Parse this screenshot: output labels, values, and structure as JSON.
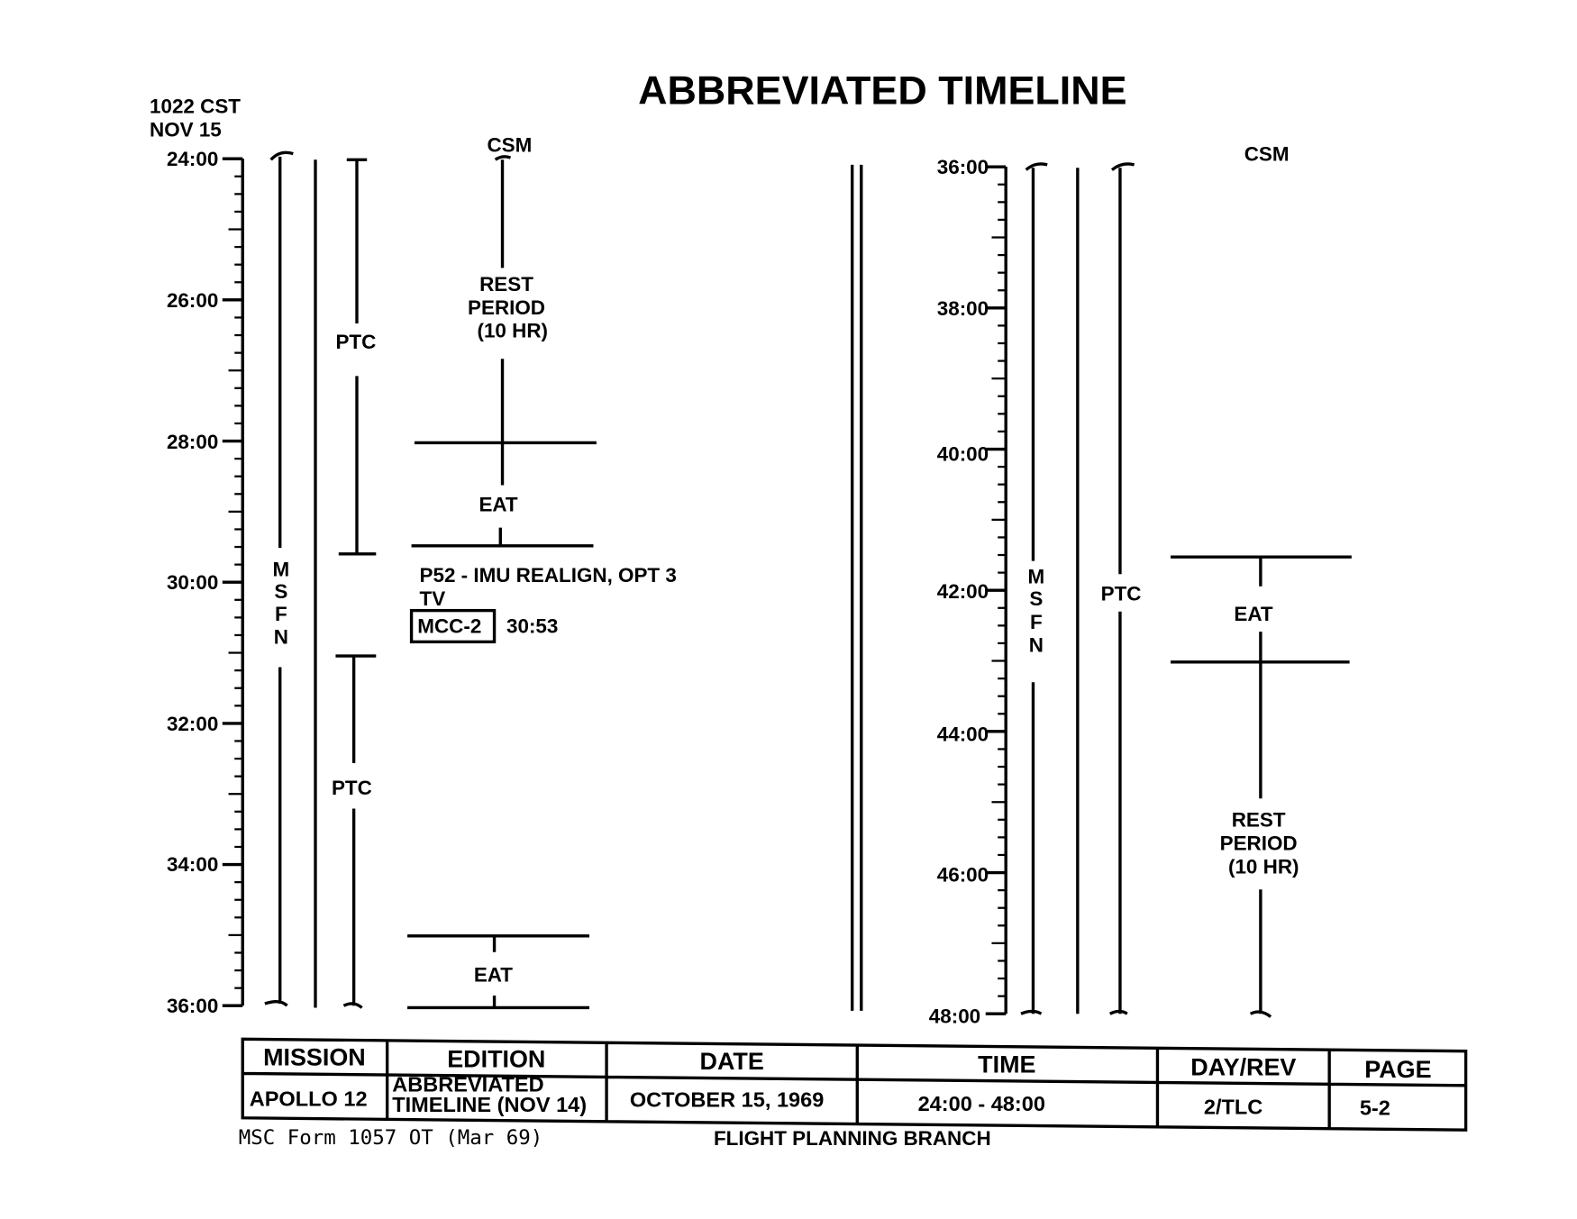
{
  "title": "ABBREVIATED TIMELINE",
  "header_note": {
    "time": "1022 CST",
    "date": "NOV 15"
  },
  "left_panel": {
    "axis_labels": [
      "24:00",
      "26:00",
      "28:00",
      "30:00",
      "32:00",
      "34:00",
      "36:00"
    ],
    "msfn_label": [
      "M",
      "S",
      "F",
      "N"
    ],
    "ptc_label_1": "PTC",
    "ptc_label_2": "PTC",
    "csm_label": "CSM",
    "rest_period": [
      "REST",
      "PERIOD",
      "(10 HR)"
    ],
    "eat_1": "EAT",
    "p52_note": "P52 - IMU REALIGN, OPT 3",
    "tv_note": "TV",
    "mcc_label": "MCC-2",
    "mcc_time": "30:53",
    "eat_2": "EAT"
  },
  "right_panel": {
    "axis_labels": [
      "36:00",
      "38:00",
      "40:00",
      "42:00",
      "44:00",
      "46:00",
      "48:00"
    ],
    "msfn_label": [
      "M",
      "S",
      "F",
      "N"
    ],
    "ptc_label": "PTC",
    "csm_label": "CSM",
    "eat": "EAT",
    "rest_period": [
      "REST",
      "PERIOD",
      "(10 HR)"
    ]
  },
  "form_table": {
    "headers": [
      "MISSION",
      "EDITION",
      "DATE",
      "TIME",
      "DAY/REV",
      "PAGE"
    ],
    "values": {
      "mission": "APOLLO 12",
      "edition_line1": "ABBREVIATED",
      "edition_line2": "TIMELINE (NOV 14)",
      "date": "OCTOBER 15, 1969",
      "time": "24:00 - 48:00",
      "day_rev": "2/TLC",
      "page": "5-2"
    }
  },
  "footer": {
    "form_number": "MSC Form 1057 OT (Mar 69)",
    "branch": "FLIGHT PLANNING BRANCH"
  }
}
